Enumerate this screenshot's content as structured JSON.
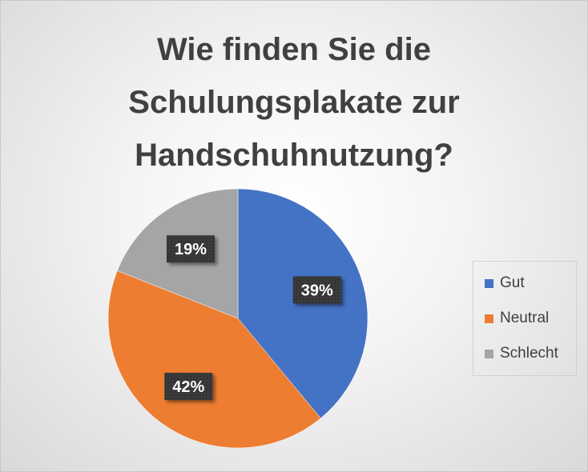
{
  "chart_data": {
    "type": "pie",
    "title": "Wie finden Sie die Schulungsplakate zur Handschuhnutzung?",
    "title_lines": [
      "Wie finden Sie die",
      "Schulungsplakate zur",
      "Handschuhnutzung?"
    ],
    "categories": [
      "Gut",
      "Neutral",
      "Schlecht"
    ],
    "values": [
      39,
      42,
      19
    ],
    "data_labels": [
      "39%",
      "42%",
      "19%"
    ],
    "colors": [
      "#4472C4",
      "#ED7D31",
      "#A5A5A5"
    ],
    "legend_position": "right"
  }
}
